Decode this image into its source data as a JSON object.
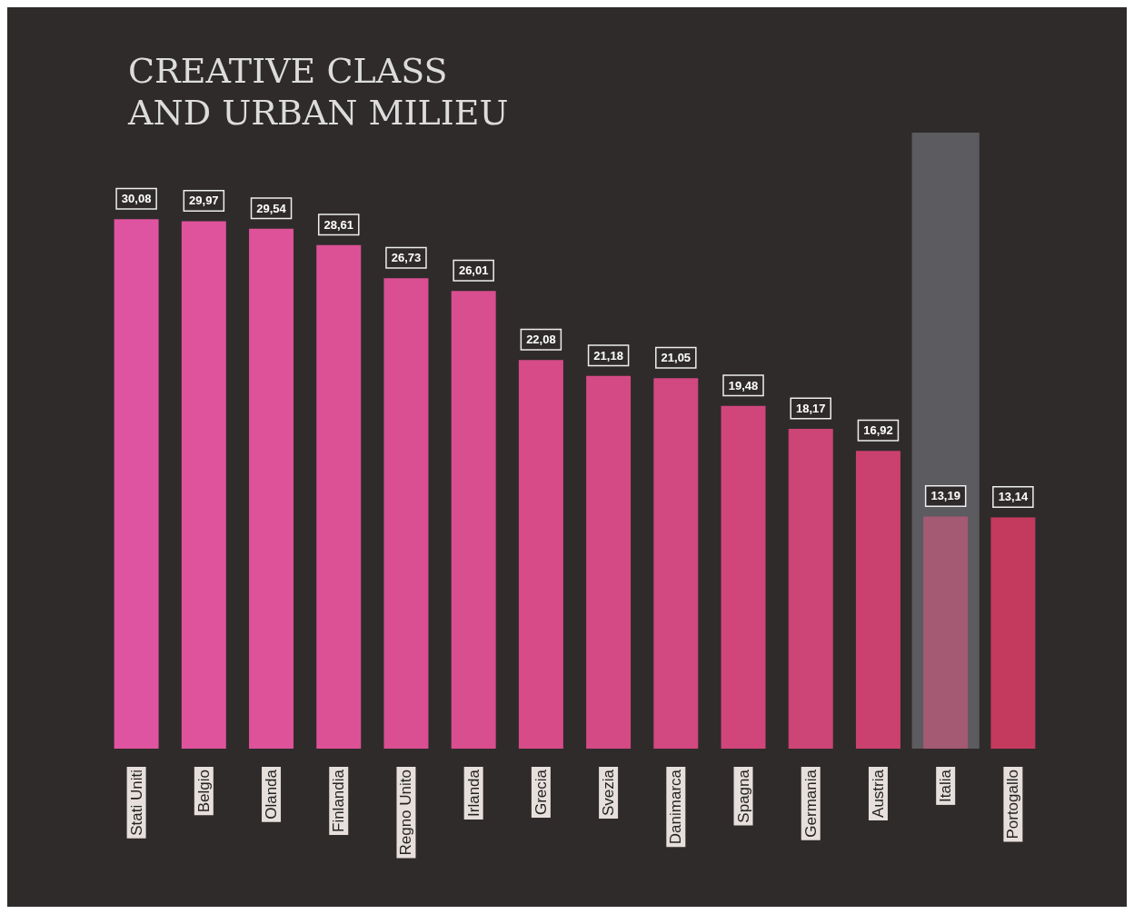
{
  "chart_data": {
    "type": "bar",
    "title": "CREATIVE CLASS\nAND URBAN MILIEU",
    "categories": [
      "Stati Uniti",
      "Belgio",
      "Olanda",
      "Finlandia",
      "Regno Unito",
      "Irlanda",
      "Grecia",
      "Svezia",
      "Danimarca",
      "Spagna",
      "Germania",
      "Austria",
      "Italia",
      "Portogallo"
    ],
    "values": [
      30.08,
      29.97,
      29.54,
      28.61,
      26.73,
      26.01,
      22.08,
      21.18,
      21.05,
      19.48,
      18.17,
      16.92,
      13.19,
      13.14
    ],
    "value_labels": [
      "30,08",
      "29,97",
      "29,54",
      "28,61",
      "26,73",
      "26,01",
      "22,08",
      "21,18",
      "21,05",
      "19,48",
      "18,17",
      "16,92",
      "13,19",
      "13,14"
    ],
    "colors": [
      "#df54a0",
      "#de539c",
      "#dd5299",
      "#dc5196",
      "#da4f92",
      "#d94e8e",
      "#d64b88",
      "#d44a84",
      "#d24880",
      "#d0467b",
      "#cd4476",
      "#ca4170",
      "#a35a72",
      "#c43a5e"
    ],
    "bands": [
      {
        "axis": "x",
        "from": "Italia",
        "to": "Italia",
        "color": "#5c5b5f"
      }
    ]
  }
}
